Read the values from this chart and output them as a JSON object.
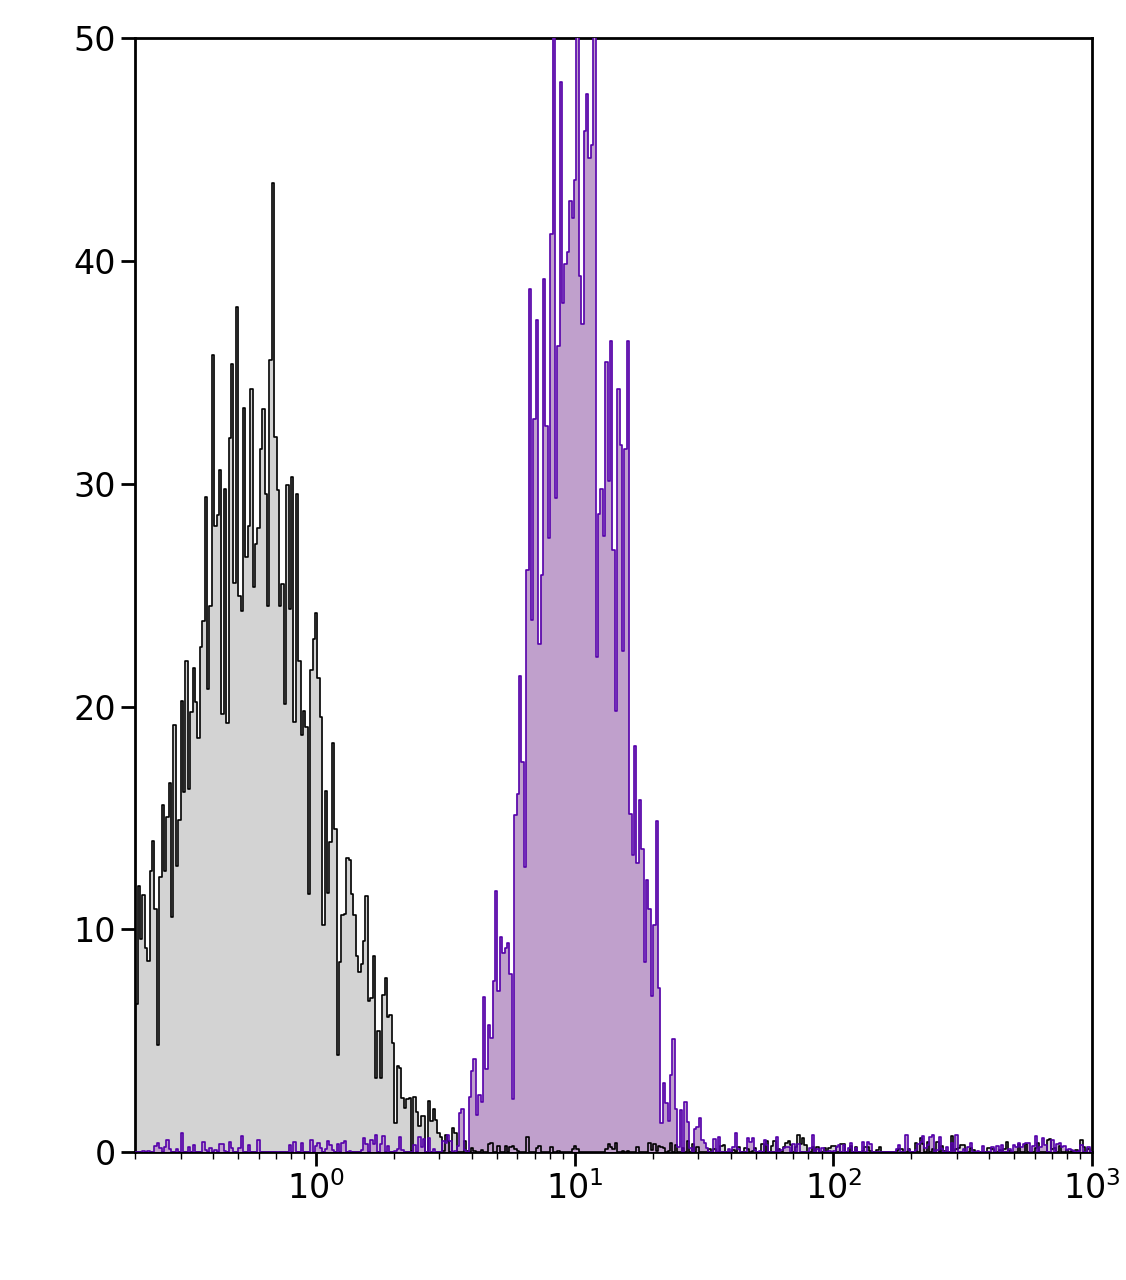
{
  "xlim": [
    0.2,
    1000
  ],
  "ylim": [
    0,
    50
  ],
  "yticks": [
    0,
    10,
    20,
    30,
    40,
    50
  ],
  "background_color": "#ffffff",
  "hist1": {
    "color_fill": "#d3d3d3",
    "color_edge": "#000000",
    "peak_y": 31,
    "mean_log": -0.255,
    "std_log": 0.26,
    "noise_std": 0.9
  },
  "hist2": {
    "color_fill": "#c0a0cc",
    "color_edge": "#5500aa",
    "peak_y": 49,
    "mean_log": 1.0,
    "std_log": 0.155,
    "noise_std": 1.2
  },
  "tick_fontsize": 24,
  "linewidth": 1.2,
  "n_bins": 400,
  "n_samples": 50000
}
